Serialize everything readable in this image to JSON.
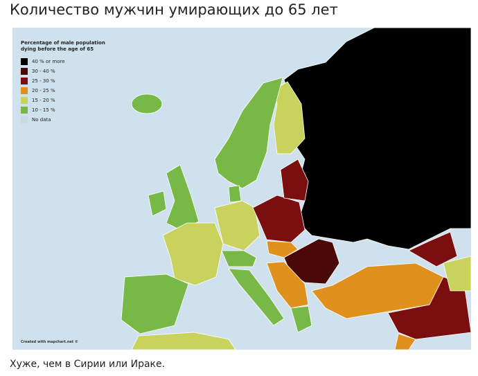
{
  "title": "Количество мужчин умирающих до 65 лет",
  "map": {
    "legend": {
      "title": "Percentage of male population dying before the age of 65",
      "items": [
        {
          "label": "40 % or more",
          "color": "#000000"
        },
        {
          "label": "30 - 40 %",
          "color": "#4a0808"
        },
        {
          "label": "25 - 30 %",
          "color": "#7b0e0e"
        },
        {
          "label": "20 - 25 %",
          "color": "#e0901c"
        },
        {
          "label": "15 - 20 %",
          "color": "#c8d25c"
        },
        {
          "label": "10 - 15 %",
          "color": "#78b846"
        },
        {
          "label": "No data",
          "color": "#c9d9e2"
        }
      ]
    },
    "credit": "Created with mapchart.net ©"
  },
  "caption": "Хуже, чем в Сирии или Ираке."
}
